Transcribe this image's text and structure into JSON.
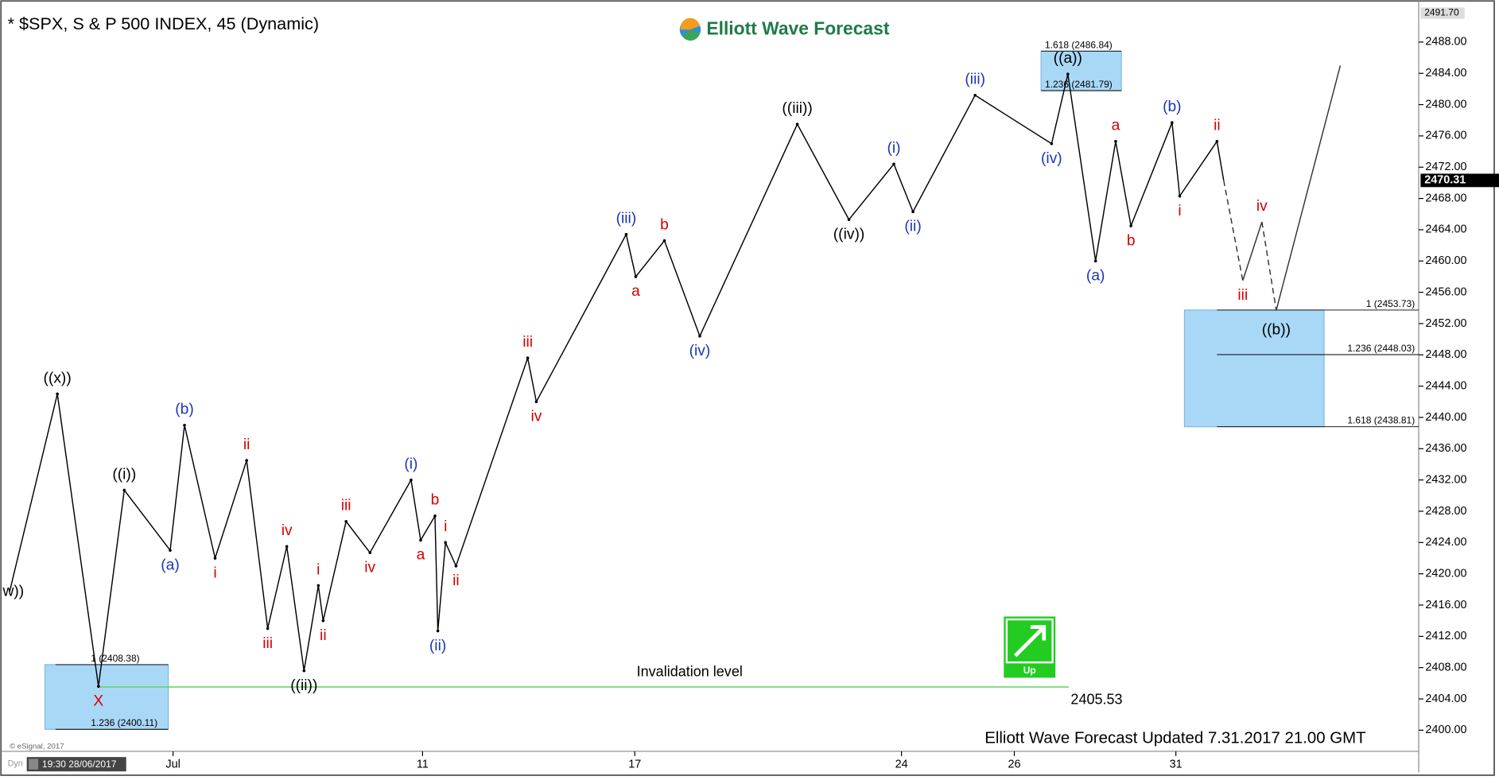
{
  "chart_data": {
    "type": "ohlc-waves",
    "title": "* $SPX, S & P 500 INDEX, 45 (Dynamic)",
    "logo_text": "Elliott Wave Forecast",
    "footer": "Elliott Wave Forecast Updated 7.31.2017 21.00 GMT",
    "copyright": "© eSignal, 2017",
    "cursor_time": "19:30 28/06/2017",
    "mode_label": "Dyn",
    "signal_label": "Up",
    "ylim": [
      2397.3,
      2492.4
    ],
    "yticks": [
      {
        "value": 2400,
        "label": "2400.00"
      },
      {
        "value": 2404,
        "label": "2404.00"
      },
      {
        "value": 2408,
        "label": "2408.00"
      },
      {
        "value": 2412,
        "label": "2412.00"
      },
      {
        "value": 2416,
        "label": "2416.00"
      },
      {
        "value": 2420,
        "label": "2420.00"
      },
      {
        "value": 2424,
        "label": "2424.00"
      },
      {
        "value": 2428,
        "label": "2428.00"
      },
      {
        "value": 2432,
        "label": "2432.00"
      },
      {
        "value": 2436,
        "label": "2436.00"
      },
      {
        "value": 2440,
        "label": "2440.00"
      },
      {
        "value": 2444,
        "label": "2444.00"
      },
      {
        "value": 2448,
        "label": "2448.00"
      },
      {
        "value": 2452,
        "label": "2452.00"
      },
      {
        "value": 2456,
        "label": "2456.00"
      },
      {
        "value": 2460,
        "label": "2460.00"
      },
      {
        "value": 2464,
        "label": "2464.00"
      },
      {
        "value": 2468,
        "label": "2468.00"
      },
      {
        "value": 2472,
        "label": "2472.00"
      },
      {
        "value": 2476,
        "label": "2476.00"
      },
      {
        "value": 2480,
        "label": "2480.00"
      },
      {
        "value": 2484,
        "label": "2484.00"
      },
      {
        "value": 2488,
        "label": "2488.00"
      }
    ],
    "top_value": {
      "value": 2491.7,
      "label": "2491.70"
    },
    "last_price": 2470.31,
    "x_labels": [
      "Jul",
      "11",
      "17",
      "24",
      "26",
      "31"
    ],
    "pivots": [
      {
        "label": "w))",
        "value": 2417.7,
        "color": "#000000"
      },
      {
        "label": "((x))",
        "value": 2443,
        "color": "#000000"
      },
      {
        "label": "X",
        "value": 2405.6,
        "color": "#d40000"
      },
      {
        "label": "((i))",
        "value": 2430.7,
        "color": "#000000"
      },
      {
        "label": "(a)",
        "value": 2423,
        "color": "#1a36b8"
      },
      {
        "label": "(b)",
        "value": 2439,
        "color": "#1a36b8"
      },
      {
        "label": "i",
        "value": 2422,
        "color": "#d40000"
      },
      {
        "label": "ii",
        "value": 2434.5,
        "color": "#d40000"
      },
      {
        "label": "iii",
        "value": 2413,
        "color": "#d40000"
      },
      {
        "label": "iv",
        "value": 2423.5,
        "color": "#d40000"
      },
      {
        "label": "((ii))",
        "value": 2407.6,
        "color": "#000000"
      },
      {
        "label": "i",
        "value": 2418.5,
        "color": "#d40000"
      },
      {
        "label": "ii",
        "value": 2414,
        "color": "#d40000"
      },
      {
        "label": "iii",
        "value": 2426.7,
        "color": "#d40000"
      },
      {
        "label": "iv",
        "value": 2422.7,
        "color": "#d40000"
      },
      {
        "label": "(i)",
        "value": 2432,
        "color": "#1a36b8"
      },
      {
        "label": "a",
        "value": 2424.3,
        "color": "#d40000"
      },
      {
        "label": "b",
        "value": 2427.4,
        "color": "#d40000"
      },
      {
        "label": "(ii)",
        "value": 2412.7,
        "color": "#1a36b8"
      },
      {
        "label": "i",
        "value": 2424,
        "color": "#d40000"
      },
      {
        "label": "ii",
        "value": 2421,
        "color": "#d40000"
      },
      {
        "label": "iii",
        "value": 2447.6,
        "color": "#d40000"
      },
      {
        "label": "iv",
        "value": 2442,
        "color": "#d40000"
      },
      {
        "label": "(iii)",
        "value": 2463.4,
        "color": "#1a36b8"
      },
      {
        "label": "a",
        "value": 2458,
        "color": "#d40000"
      },
      {
        "label": "b",
        "value": 2462.6,
        "color": "#d40000"
      },
      {
        "label": "(iv)",
        "value": 2450.4,
        "color": "#1a36b8"
      },
      {
        "label": "((iii))",
        "value": 2477.5,
        "color": "#000000"
      },
      {
        "label": "((iv))",
        "value": 2465.3,
        "color": "#000000"
      },
      {
        "label": "(i)",
        "value": 2472.4,
        "color": "#1a36b8"
      },
      {
        "label": "(ii)",
        "value": 2466.3,
        "color": "#1a36b8"
      },
      {
        "label": "(iii)",
        "value": 2481.2,
        "color": "#1a36b8"
      },
      {
        "label": "(iv)",
        "value": 2475,
        "color": "#1a36b8"
      },
      {
        "label": "((a))",
        "value": 2483.9,
        "color": "#000000"
      },
      {
        "label": "(a)",
        "value": 2460,
        "color": "#1a36b8"
      },
      {
        "label": "a",
        "value": 2475.3,
        "color": "#d40000"
      },
      {
        "label": "b",
        "value": 2464.5,
        "color": "#d40000"
      },
      {
        "label": "(b)",
        "value": 2477.7,
        "color": "#1a36b8"
      },
      {
        "label": "i",
        "value": 2468.3,
        "color": "#d40000"
      },
      {
        "label": "ii",
        "value": 2475.3,
        "color": "#d40000"
      }
    ],
    "projection": [
      {
        "label": "iii",
        "value": 2457.5,
        "color": "#d40000"
      },
      {
        "label": "iv",
        "value": 2465,
        "color": "#d40000"
      },
      {
        "label": "((b))",
        "value": 2453.7,
        "color": "#000000"
      },
      {
        "value": 2485
      }
    ],
    "fib_zones": [
      {
        "color": "#a9d8f7",
        "levels": [
          {
            "label": "1 (2408.38)",
            "value": 2408.38
          },
          {
            "label": "1.236 (2400.11)",
            "value": 2400.11
          }
        ]
      },
      {
        "color": "#a9d8f7",
        "levels": [
          {
            "label": "1 (2453.73)",
            "value": 2453.73
          },
          {
            "label": "1.236 (2448.03)",
            "value": 2448.03
          },
          {
            "label": "1.618 (2438.81)",
            "value": 2438.81
          }
        ]
      },
      {
        "color": "#a9d8f7",
        "levels": [
          {
            "label": "1.618 (2486.84)",
            "value": 2486.84
          },
          {
            "label": "1.236 (2481.79)",
            "value": 2481.79
          }
        ]
      }
    ],
    "invalidation": {
      "label": "Invalidation level",
      "value": 2405.53,
      "color": "#5fd35f"
    }
  }
}
